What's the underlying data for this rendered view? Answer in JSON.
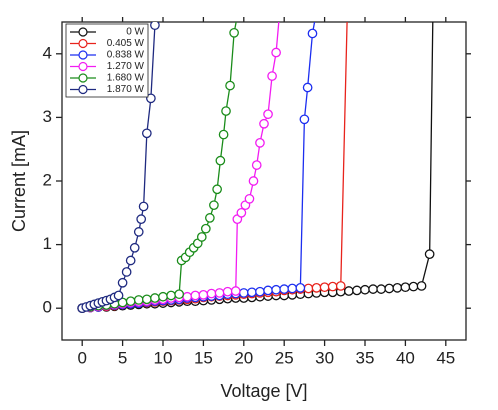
{
  "chart_data": {
    "type": "line",
    "x_label": "Voltage [V]",
    "y_label": "Current [mA]",
    "xlim": [
      -2.5,
      47.5
    ],
    "ylim": [
      -0.5,
      4.5
    ],
    "xticks": [
      0,
      5,
      10,
      15,
      20,
      25,
      30,
      35,
      40,
      45
    ],
    "yticks": [
      0,
      1,
      2,
      3,
      4
    ],
    "legend": "top-left",
    "grid": false,
    "series": [
      {
        "name": "0 W",
        "color": "#111111",
        "x": [
          0,
          1,
          2,
          3,
          4,
          5,
          6,
          7,
          8,
          9,
          10,
          11,
          12,
          13,
          14,
          15,
          16,
          17,
          18,
          19,
          20,
          21,
          22,
          23,
          24,
          25,
          26,
          27,
          28,
          29,
          30,
          31,
          32,
          33,
          34,
          35,
          36,
          37,
          38,
          39,
          40,
          41,
          42,
          43,
          43.4
        ],
        "values": [
          0,
          0.01,
          0.02,
          0.02,
          0.03,
          0.04,
          0.05,
          0.06,
          0.07,
          0.07,
          0.08,
          0.09,
          0.1,
          0.11,
          0.11,
          0.12,
          0.13,
          0.14,
          0.15,
          0.16,
          0.16,
          0.17,
          0.18,
          0.19,
          0.2,
          0.2,
          0.21,
          0.22,
          0.23,
          0.24,
          0.25,
          0.25,
          0.26,
          0.27,
          0.28,
          0.29,
          0.3,
          0.3,
          0.31,
          0.32,
          0.33,
          0.34,
          0.35,
          0.85,
          4.6
        ]
      },
      {
        "name": "0.405 W",
        "color": "#e8231c",
        "x": [
          0,
          1,
          2,
          3,
          4,
          5,
          6,
          7,
          8,
          9,
          10,
          11,
          12,
          13,
          14,
          15,
          16,
          17,
          18,
          19,
          20,
          21,
          22,
          23,
          24,
          25,
          26,
          27,
          28,
          29,
          30,
          31,
          32,
          32.8
        ],
        "values": [
          0,
          0.01,
          0.02,
          0.03,
          0.04,
          0.06,
          0.07,
          0.08,
          0.09,
          0.1,
          0.11,
          0.12,
          0.13,
          0.14,
          0.15,
          0.17,
          0.18,
          0.19,
          0.2,
          0.21,
          0.22,
          0.23,
          0.24,
          0.25,
          0.26,
          0.28,
          0.29,
          0.3,
          0.31,
          0.32,
          0.33,
          0.34,
          0.35,
          4.6
        ]
      },
      {
        "name": "0.838 W",
        "color": "#1c2ef0",
        "x": [
          0,
          1,
          2,
          3,
          4,
          5,
          6,
          7,
          8,
          9,
          10,
          11,
          12,
          13,
          14,
          15,
          16,
          17,
          18,
          19,
          20,
          21,
          22,
          23,
          24,
          25,
          26,
          27,
          27.5,
          27.9,
          28.5,
          28.9
        ],
        "values": [
          0,
          0.01,
          0.02,
          0.04,
          0.05,
          0.06,
          0.07,
          0.08,
          0.1,
          0.11,
          0.12,
          0.13,
          0.14,
          0.16,
          0.17,
          0.18,
          0.19,
          0.2,
          0.22,
          0.23,
          0.24,
          0.25,
          0.26,
          0.28,
          0.29,
          0.3,
          0.31,
          0.32,
          2.97,
          3.47,
          4.32,
          4.6
        ]
      },
      {
        "name": "1.270 W",
        "color": "#f21cf2",
        "x": [
          0,
          1,
          2,
          3,
          4,
          5,
          6,
          7,
          8,
          9,
          10,
          11,
          12,
          13,
          14,
          15,
          16,
          17,
          18,
          19,
          19.2,
          19.7,
          20.2,
          20.7,
          21.2,
          21.6,
          22,
          22.5,
          23,
          23.5,
          24,
          24.4
        ],
        "values": [
          0,
          0.01,
          0.03,
          0.04,
          0.06,
          0.07,
          0.09,
          0.1,
          0.11,
          0.13,
          0.14,
          0.16,
          0.17,
          0.18,
          0.2,
          0.21,
          0.23,
          0.24,
          0.26,
          0.27,
          1.4,
          1.5,
          1.62,
          1.72,
          2.0,
          2.25,
          2.6,
          2.9,
          3.05,
          3.65,
          4.02,
          4.6
        ]
      },
      {
        "name": "1.680 W",
        "color": "#1a8c1a",
        "x": [
          0,
          1,
          2,
          3,
          4,
          5,
          6,
          7,
          8,
          9,
          10,
          11,
          12,
          12.3,
          12.8,
          13.3,
          13.8,
          14.3,
          14.8,
          15.3,
          15.8,
          16.3,
          16.7,
          17.1,
          17.5,
          17.8,
          18.3,
          18.8,
          19.2
        ],
        "values": [
          0,
          0.02,
          0.04,
          0.05,
          0.07,
          0.09,
          0.11,
          0.13,
          0.14,
          0.16,
          0.18,
          0.2,
          0.22,
          0.75,
          0.8,
          0.88,
          0.95,
          1.02,
          1.12,
          1.25,
          1.42,
          1.62,
          1.87,
          2.32,
          2.73,
          3.1,
          3.5,
          4.33,
          4.6
        ]
      },
      {
        "name": "1.870 W",
        "color": "#1f2a80",
        "x": [
          0,
          0.5,
          1,
          1.5,
          2,
          2.5,
          3,
          3.5,
          4,
          4.5,
          5,
          5.5,
          6,
          6.5,
          7,
          7.3,
          7.6,
          8,
          8.5,
          9,
          9.3
        ],
        "values": [
          0,
          0.02,
          0.04,
          0.06,
          0.08,
          0.1,
          0.12,
          0.14,
          0.17,
          0.2,
          0.4,
          0.57,
          0.75,
          0.95,
          1.2,
          1.4,
          1.6,
          2.75,
          3.3,
          4.45,
          4.6
        ]
      }
    ]
  }
}
